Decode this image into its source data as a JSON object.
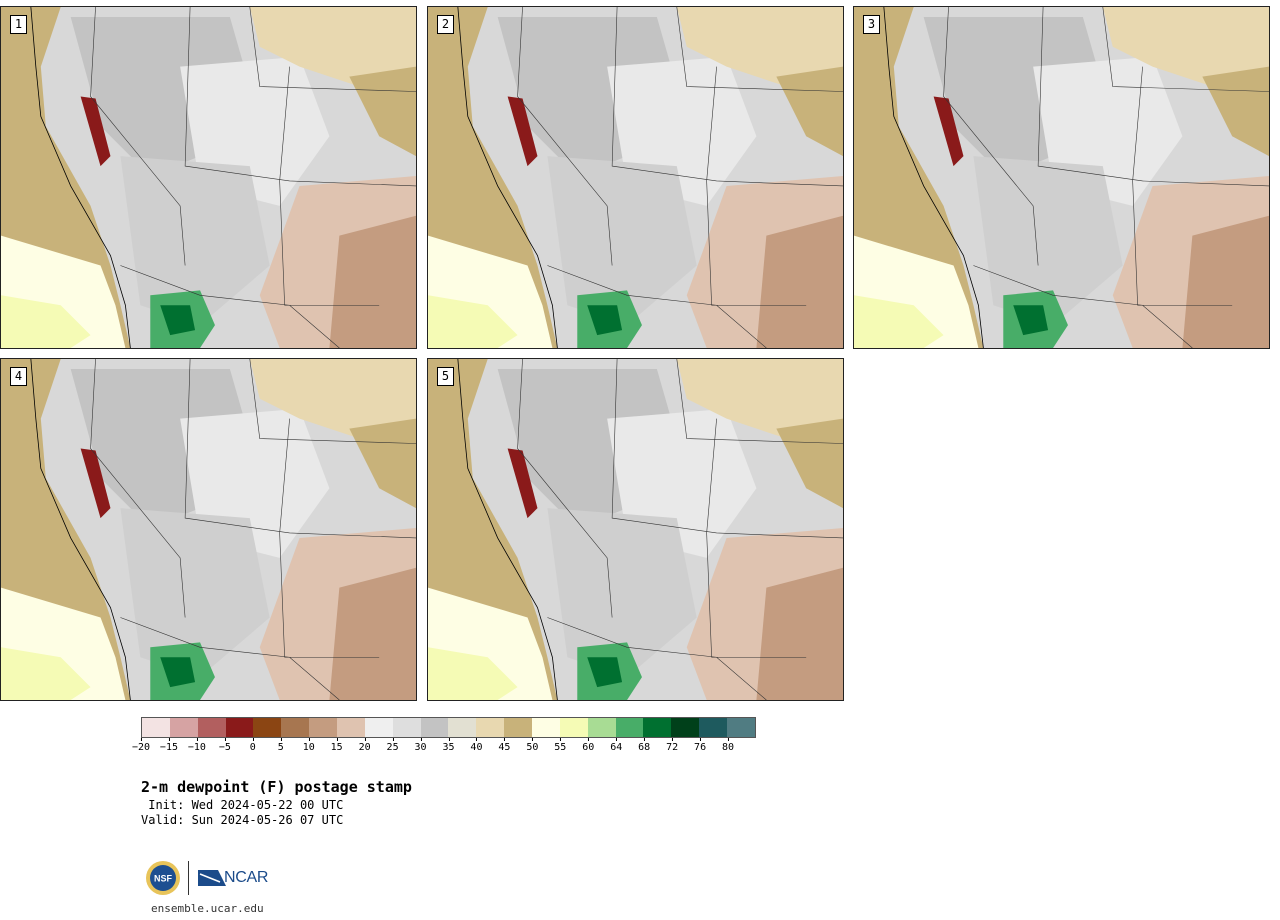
{
  "panels": [
    {
      "label": "1"
    },
    {
      "label": "2"
    },
    {
      "label": "3"
    },
    {
      "label": "4"
    },
    {
      "label": "5"
    }
  ],
  "colorbar": {
    "colors": [
      "#f3e3e3",
      "#d6a3a3",
      "#b25f5f",
      "#8a1a1a",
      "#8b4513",
      "#a77650",
      "#c49c80",
      "#dfc3b0",
      "#efefef",
      "#dedede",
      "#c3c3c3",
      "#e2e0d2",
      "#e8d8b0",
      "#c8b27a",
      "#fefee4",
      "#f5fbb5",
      "#a8dc94",
      "#48ad68",
      "#007030",
      "#00401a",
      "#1e5a5e",
      "#507c82"
    ],
    "ticks": [
      "−20",
      "−15",
      "−10",
      "−5",
      "0",
      "5",
      "10",
      "15",
      "20",
      "25",
      "30",
      "35",
      "40",
      "45",
      "50",
      "55",
      "60",
      "64",
      "68",
      "72",
      "76",
      "80"
    ]
  },
  "title": "2-m dewpoint (F) postage stamp",
  "init": " Init: Wed 2024-05-22 00 UTC",
  "valid": "Valid: Sun 2024-05-26 07 UTC",
  "logos": {
    "nsf_text": "NSF",
    "ncar_text": "NCAR",
    "url": "ensemble.ucar.edu"
  }
}
